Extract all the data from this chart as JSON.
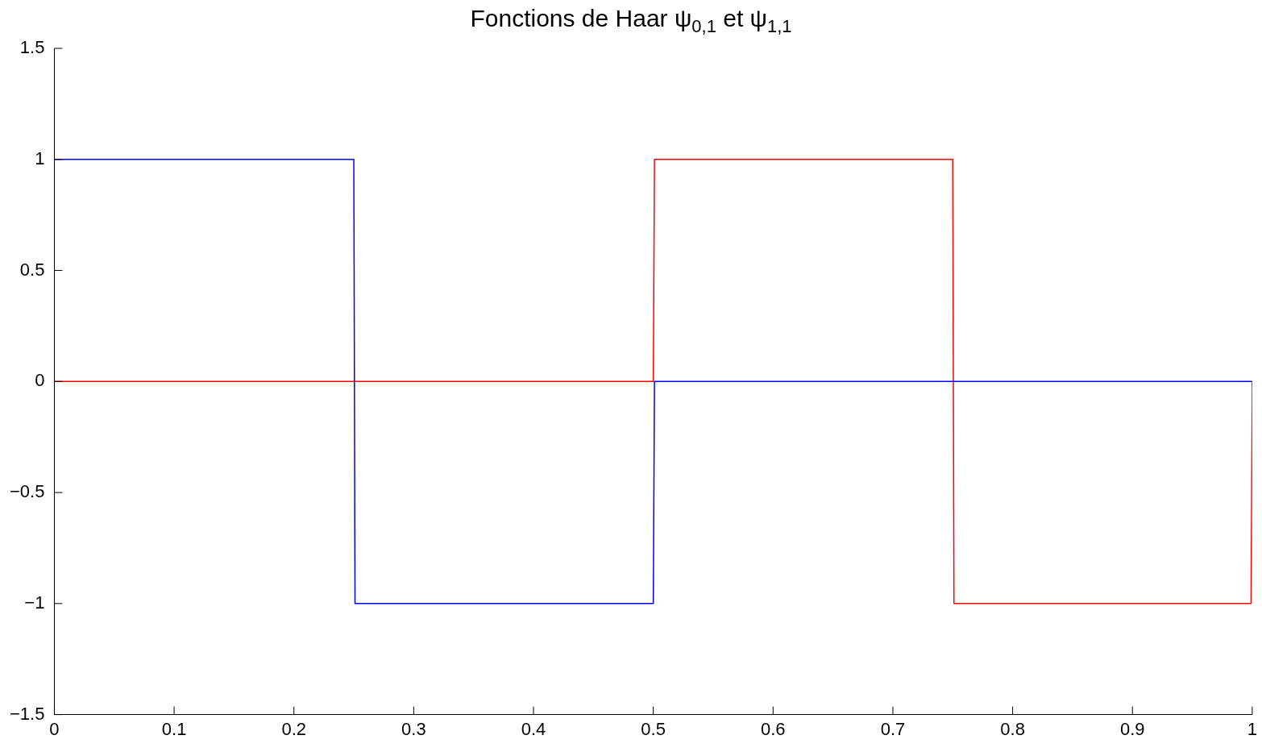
{
  "chart_data": {
    "type": "line",
    "title": "Fonctions de Haar ψ$_{0,1}$ et ψ$_{1,1}$",
    "series": [
      {
        "color": "#0000ff",
        "x": [
          0,
          0.25,
          0.251,
          0.5,
          0.501,
          1
        ],
        "values": [
          1,
          1,
          -1,
          -1,
          0,
          0
        ]
      },
      {
        "color": "#ff0000",
        "x": [
          0,
          0.5,
          0.501,
          0.75,
          0.751,
          0.999,
          1
        ],
        "values": [
          0,
          0,
          1,
          1,
          -1,
          -1,
          0
        ]
      }
    ],
    "xlim": [
      0,
      1
    ],
    "xticks": [
      0,
      0.1,
      0.2,
      0.3,
      0.4,
      0.5,
      0.6,
      0.7,
      0.8,
      0.9,
      1
    ],
    "ylim": [
      -1.5,
      1.5
    ],
    "yticks": [
      {
        "value": -1.5,
        "label": "−1.5"
      },
      {
        "value": -1,
        "label": "−1"
      },
      {
        "value": -0.5,
        "label": "−0.5"
      },
      0,
      0.5,
      1,
      1.5
    ],
    "grid": false,
    "legend": false,
    "marker": "none",
    "line_style": "solid"
  }
}
